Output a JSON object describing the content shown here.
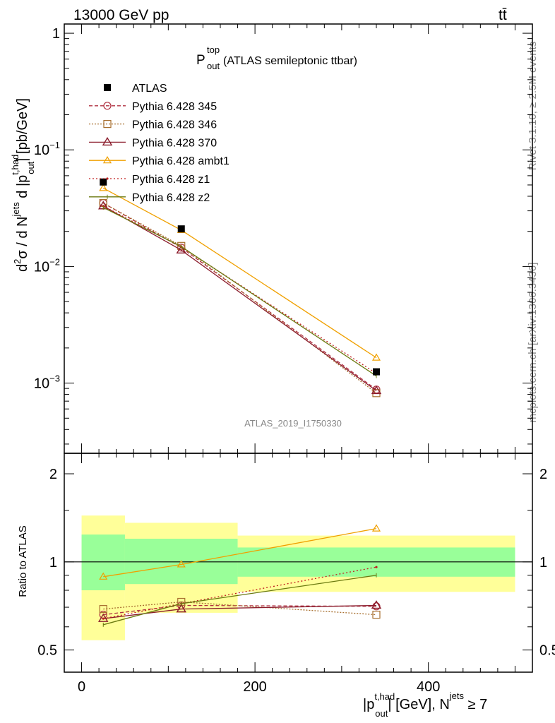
{
  "header": {
    "energy_label": "13000 GeV pp",
    "process_label": "tt̄"
  },
  "side_labels": {
    "rivet": "Rivet 3.1.10, ≥ 2.5M events",
    "mcplots": "mcplots.cern.ch [arXiv:1306.3436]"
  },
  "chart_data": [
    {
      "type": "line",
      "panel": "main",
      "title_main": "P",
      "title_sup": "top",
      "title_sub": "out",
      "title_rest": " (ATLAS semileptonic ttbar)",
      "watermark": "ATLAS_2019_I1750330",
      "ylabel": "d²σ / d N^jets d |p_out^t,had| [pb/GeV]",
      "yscale": "log",
      "ylim": [
        0.00025,
        1.2
      ],
      "xlim": [
        -20,
        520
      ],
      "ytick_labels": {
        "1": "1",
        "0.1": "10⁻¹",
        "0.01": "10⁻²",
        "0.001": "10⁻³"
      },
      "legend_position": "top-left",
      "data": {
        "name": "ATLAS",
        "x": [
          25,
          115,
          340
        ],
        "y": [
          0.053,
          0.021,
          0.00125
        ]
      },
      "series": [
        {
          "name": "Pythia 6.428 345",
          "color": "#b03040",
          "dash": "5,3",
          "marker": "circle",
          "x": [
            25,
            115,
            340
          ],
          "y": [
            0.035,
            0.0145,
            0.00088
          ]
        },
        {
          "name": "Pythia 6.428 346",
          "color": "#a87030",
          "dash": "2,2",
          "marker": "square",
          "x": [
            25,
            115,
            340
          ],
          "y": [
            0.035,
            0.015,
            0.00082
          ]
        },
        {
          "name": "Pythia 6.428 370",
          "color": "#8b1c2c",
          "dash": "",
          "marker": "triangle",
          "x": [
            25,
            115,
            340
          ],
          "y": [
            0.033,
            0.0138,
            0.00086
          ]
        },
        {
          "name": "Pythia 6.428 ambt1",
          "color": "#f0a000",
          "dash": "",
          "marker": "triangle-open",
          "x": [
            25,
            115,
            340
          ],
          "y": [
            0.047,
            0.0205,
            0.00165
          ]
        },
        {
          "name": "Pythia 6.428 z1",
          "color": "#c02020",
          "dash": "2,3",
          "marker": "dot",
          "x": [
            25,
            115,
            340
          ],
          "y": [
            0.033,
            0.0147,
            0.00121
          ]
        },
        {
          "name": "Pythia 6.428 z2",
          "color": "#6b7a10",
          "dash": "",
          "marker": "none",
          "x": [
            25,
            115,
            340
          ],
          "y": [
            0.032,
            0.0148,
            0.00115
          ]
        }
      ]
    },
    {
      "type": "line",
      "panel": "ratio",
      "ylabel": "Ratio to ATLAS",
      "yscale": "log",
      "ylim": [
        0.42,
        2.35
      ],
      "ytick_labels": [
        "0.5",
        "1",
        "2"
      ],
      "ytick_values": [
        0.5,
        1,
        2
      ],
      "xlabel": "|p_out^t,had| [GeV], N^jets ≥ 7",
      "xtick_labels": [
        "0",
        "200",
        "400"
      ],
      "xtick_values": [
        0,
        200,
        400
      ],
      "xlim": [
        -20,
        520
      ],
      "bands": [
        {
          "x0": 0,
          "x1": 50,
          "inner": [
            0.8,
            1.24
          ],
          "outer": [
            0.54,
            1.44
          ]
        },
        {
          "x0": 50,
          "x1": 180,
          "inner": [
            0.84,
            1.2
          ],
          "outer": [
            0.67,
            1.36
          ]
        },
        {
          "x0": 180,
          "x1": 500,
          "inner": [
            0.89,
            1.12
          ],
          "outer": [
            0.79,
            1.23
          ]
        }
      ],
      "series": [
        {
          "name": "Pythia 6.428 345",
          "color": "#b03040",
          "dash": "5,3",
          "marker": "circle",
          "x": [
            25,
            115,
            340
          ],
          "y": [
            0.66,
            0.71,
            0.705
          ]
        },
        {
          "name": "Pythia 6.428 346",
          "color": "#a87030",
          "dash": "2,2",
          "marker": "square",
          "x": [
            25,
            115,
            340
          ],
          "y": [
            0.69,
            0.73,
            0.66
          ]
        },
        {
          "name": "Pythia 6.428 370",
          "color": "#8b1c2c",
          "dash": "",
          "marker": "triangle",
          "x": [
            25,
            115,
            340
          ],
          "y": [
            0.64,
            0.69,
            0.71
          ]
        },
        {
          "name": "Pythia 6.428 ambt1",
          "color": "#f0a000",
          "dash": "",
          "marker": "triangle-open",
          "x": [
            25,
            115,
            340
          ],
          "y": [
            0.89,
            0.98,
            1.3
          ]
        },
        {
          "name": "Pythia 6.428 z1",
          "color": "#c02020",
          "dash": "2,3",
          "marker": "dot",
          "x": [
            25,
            115,
            340
          ],
          "y": [
            0.64,
            0.72,
            0.96
          ]
        },
        {
          "name": "Pythia 6.428 z2",
          "color": "#6b7a10",
          "dash": "",
          "marker": "none",
          "x": [
            25,
            115,
            340
          ],
          "y": [
            0.61,
            0.72,
            0.9
          ]
        }
      ]
    }
  ]
}
